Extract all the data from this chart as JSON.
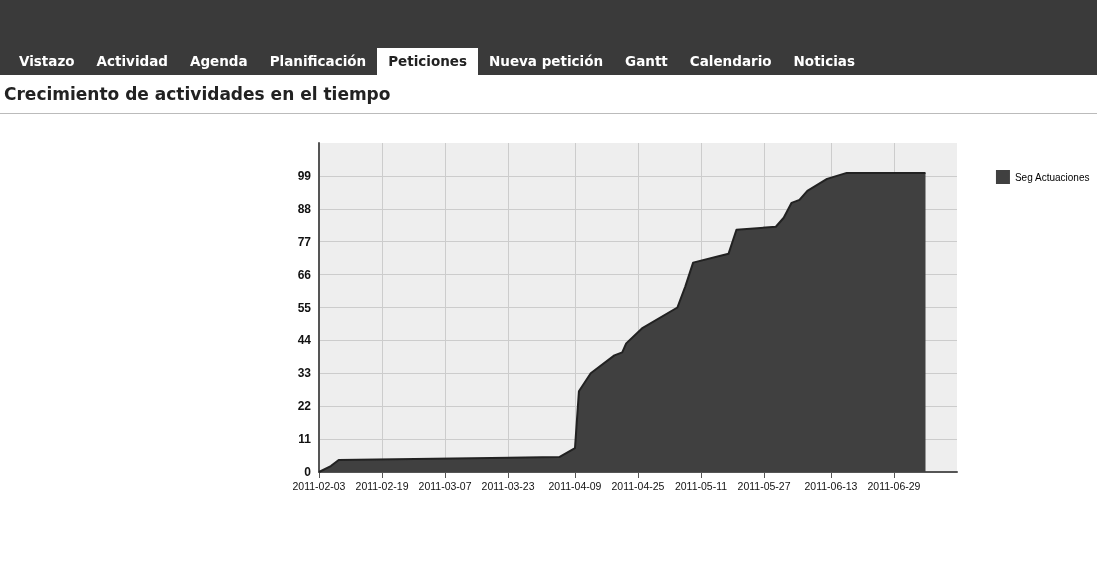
{
  "chart_data": {
    "type": "area",
    "title": "Crecimiento de actividades en el tiempo",
    "annotations": [
      "Vistazo",
      "Actividad",
      "Agenda",
      "Planificación",
      "Peticiones",
      "Nueva petición",
      "Gantt",
      "Calendario",
      "Noticias"
    ],
    "x": [
      "2011-02-03",
      "2011-02-06",
      "2011-02-08",
      "2011-04-05",
      "2011-04-09",
      "2011-04-10",
      "2011-04-13",
      "2011-04-14",
      "2011-04-19",
      "2011-04-21",
      "2011-04-22",
      "2011-04-26",
      "2011-05-05",
      "2011-05-07",
      "2011-05-09",
      "2011-05-18",
      "2011-05-20",
      "2011-05-30",
      "2011-06-01",
      "2011-06-03",
      "2011-06-05",
      "2011-06-07",
      "2011-06-12",
      "2011-06-17",
      "2011-07-07"
    ],
    "series": [
      {
        "name": "Seg Actuaciones",
        "color": "#404040",
        "values": [
          0,
          2,
          4,
          5,
          8,
          27,
          33,
          34,
          39,
          40,
          43,
          48,
          55,
          62,
          70,
          73,
          81,
          82,
          85,
          90,
          91,
          94,
          98,
          100,
          100
        ]
      }
    ],
    "xlim": [
      "2011-02-03",
      "2011-07-15"
    ],
    "xticks": [
      "2011-02-03",
      "2011-02-19",
      "2011-03-07",
      "2011-03-23",
      "2011-04-09",
      "2011-04-25",
      "2011-05-11",
      "2011-05-27",
      "2011-06-13",
      "2011-06-29"
    ],
    "ylim": [
      0,
      110
    ],
    "yticks": [
      0,
      11,
      22,
      33,
      44,
      55,
      66,
      77,
      88,
      99
    ],
    "grid": true,
    "legend": "top right",
    "marker": "none"
  }
}
